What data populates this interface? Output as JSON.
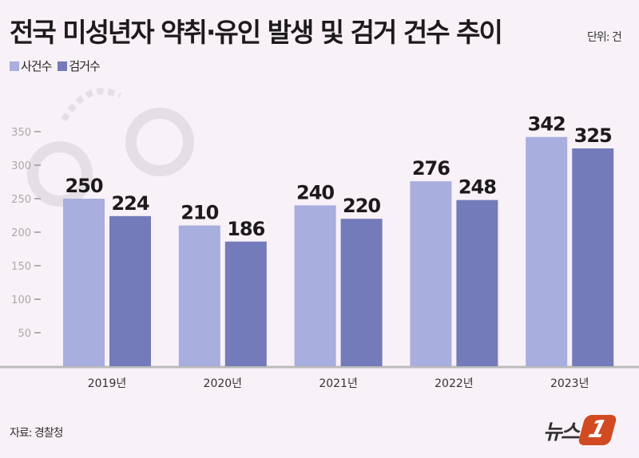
{
  "title": "전국 미성년자 약취·유인 발생 및 검거 건수 추이",
  "unit": "단위: 건",
  "source": "자료: 경찰청",
  "logo": {
    "text": "뉴스",
    "mark": "1"
  },
  "colors": {
    "series1": "#a8aedd",
    "series2": "#747bba",
    "background": "#f8f1f7"
  },
  "chart_data": {
    "type": "bar",
    "title": "전국 미성년자 약취·유인 발생 및 검거 건수 추이",
    "categories": [
      "2019년",
      "2020년",
      "2021년",
      "2022년",
      "2023년"
    ],
    "series": [
      {
        "name": "사건수",
        "values": [
          250,
          210,
          240,
          276,
          342
        ]
      },
      {
        "name": "검거수",
        "values": [
          224,
          186,
          220,
          248,
          325
        ]
      }
    ],
    "yticks": [
      50,
      100,
      150,
      200,
      250,
      300,
      350
    ],
    "ylim": [
      0,
      350
    ],
    "legend": "top-left",
    "grid": false
  }
}
